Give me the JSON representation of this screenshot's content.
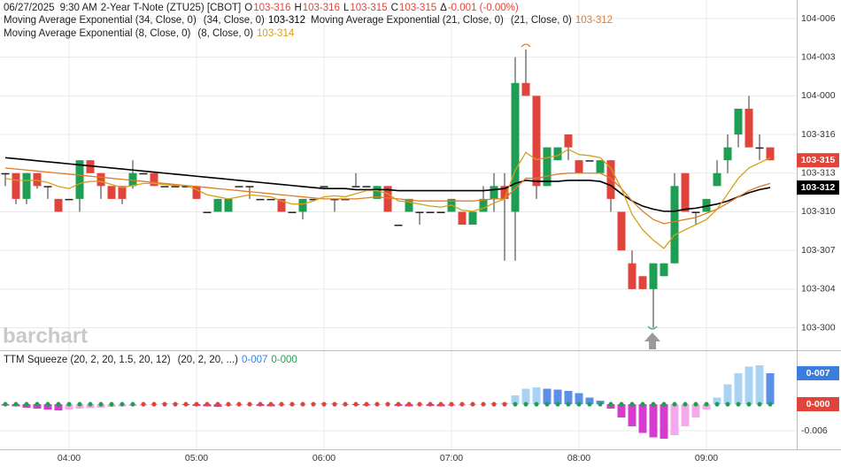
{
  "header": {
    "date": "06/27/2025",
    "time": "9:30 AM",
    "symbol": "2-Year T-Note (ZTU25) [CBOT]",
    "ohlc": [
      {
        "key": "O",
        "value": "103-316"
      },
      {
        "key": "H",
        "value": "103-316"
      },
      {
        "key": "L",
        "value": "103-315"
      },
      {
        "key": "C",
        "value": "103-315"
      },
      {
        "key": "Δ",
        "value": "-0.001 (-0.00%)"
      }
    ],
    "value_color": "#e0443a",
    "watermark": "barchart"
  },
  "chart_data": [
    {
      "type": "candlestick",
      "categories": [
        null,
        null,
        null,
        null,
        null,
        null,
        "04:00",
        null,
        null,
        null,
        null,
        null,
        null,
        null,
        null,
        null,
        null,
        null,
        "05:00",
        null,
        null,
        null,
        null,
        null,
        null,
        null,
        null,
        null,
        null,
        null,
        "06:00",
        null,
        null,
        null,
        null,
        null,
        null,
        null,
        null,
        null,
        null,
        null,
        "07:00",
        null,
        null,
        null,
        null,
        null,
        null,
        null,
        null,
        null,
        null,
        null,
        "08:00",
        null,
        null,
        null,
        null,
        null,
        null,
        null,
        null,
        null,
        null,
        null,
        "09:00",
        null,
        null,
        null,
        null,
        null,
        null
      ],
      "open": [
        31.25,
        31.25,
        31.0,
        31.25,
        31.125,
        31.0,
        31.0,
        31.0,
        31.375,
        31.25,
        31.125,
        31.125,
        31.125,
        31.25,
        31.25,
        31.125,
        31.125,
        31.125,
        31.125,
        30.875,
        30.875,
        30.875,
        31.125,
        31.125,
        31.0,
        31.0,
        31.0,
        30.875,
        30.875,
        31.0,
        31.125,
        31.0,
        31.0,
        31.125,
        31.125,
        31.0,
        31.125,
        30.75,
        30.875,
        30.875,
        30.875,
        30.875,
        30.875,
        30.875,
        30.75,
        30.875,
        31.0,
        31.125,
        30.875,
        32.125,
        32.0,
        31.125,
        31.375,
        31.625,
        31.375,
        31.375,
        31.25,
        31.375,
        30.875,
        30.375,
        30.25,
        30.125,
        30.25,
        30.375,
        31.25,
        30.875,
        30.875,
        31.125,
        31.375,
        31.625,
        31.875,
        31.5,
        31.5
      ],
      "high": [
        31.25,
        31.25,
        31.25,
        31.25,
        31.125,
        31.0,
        31.0,
        31.375,
        31.375,
        31.25,
        31.125,
        31.125,
        31.375,
        31.25,
        31.25,
        31.125,
        31.125,
        31.125,
        31.125,
        30.875,
        31.0,
        31.0,
        31.125,
        31.125,
        31.0,
        31.0,
        31.0,
        30.875,
        31.0,
        31.0,
        31.125,
        31.0,
        31.0,
        31.25,
        31.125,
        31.125,
        31.125,
        30.75,
        31.0,
        30.875,
        30.875,
        30.875,
        31.0,
        30.875,
        30.875,
        31.125,
        31.25,
        31.25,
        32.375,
        32.45,
        32.0,
        31.5,
        31.5,
        31.625,
        31.375,
        31.375,
        31.375,
        31.375,
        30.875,
        30.5,
        30.25,
        30.375,
        30.375,
        31.25,
        31.25,
        30.875,
        31.0,
        31.375,
        31.625,
        31.875,
        32.0,
        31.625,
        31.5
      ],
      "low": [
        31.125,
        30.95,
        30.95,
        31.1,
        31.0,
        30.875,
        31.0,
        30.875,
        31.25,
        31.0,
        31.0,
        30.95,
        31.1,
        31.25,
        31.125,
        31.125,
        31.125,
        31.125,
        31.0,
        30.875,
        30.875,
        30.875,
        31.125,
        31.0,
        31.0,
        31.0,
        30.875,
        30.875,
        30.8,
        31.0,
        31.125,
        30.875,
        31.0,
        31.125,
        31.125,
        31.0,
        30.875,
        30.75,
        30.875,
        30.75,
        30.875,
        30.875,
        30.875,
        30.75,
        30.75,
        30.875,
        30.875,
        30.4,
        30.4,
        32.0,
        31.0,
        31.125,
        31.375,
        31.375,
        31.25,
        31.375,
        31.25,
        30.875,
        30.5,
        30.125,
        30.125,
        29.75,
        30.25,
        30.375,
        30.875,
        30.75,
        30.875,
        31.125,
        31.25,
        31.5,
        31.5,
        31.375,
        31.375
      ],
      "close": [
        31.25,
        31.0,
        31.25,
        31.125,
        31.125,
        30.875,
        31.0,
        31.375,
        31.25,
        31.125,
        31.0,
        31.0,
        31.25,
        31.25,
        31.125,
        31.125,
        31.125,
        31.125,
        31.0,
        30.875,
        31.0,
        31.0,
        31.125,
        31.125,
        31.0,
        31.0,
        30.875,
        30.875,
        31.0,
        31.0,
        31.125,
        31.0,
        31.0,
        31.125,
        31.125,
        31.125,
        30.875,
        30.75,
        31.0,
        30.875,
        30.875,
        30.875,
        31.0,
        30.75,
        30.875,
        31.0,
        31.125,
        31.0,
        32.125,
        32.0,
        31.125,
        31.5,
        31.5,
        31.5,
        31.25,
        31.375,
        31.375,
        31.0,
        30.5,
        30.125,
        30.125,
        30.375,
        30.375,
        31.125,
        30.875,
        30.875,
        31.0,
        31.25,
        31.5,
        31.875,
        31.5,
        31.5,
        31.375
      ],
      "last_label": "103-315",
      "colors": {
        "up": "#1e9e52",
        "down": "#e0443a",
        "flat": "#222222"
      },
      "series": [
        {
          "name": "Moving Average Exponential (34, Close, 0)",
          "params": "(34, Close, 0)",
          "last_label": "103-312",
          "color": "#000000",
          "values": [
            31.4,
            31.39,
            31.38,
            31.37,
            31.36,
            31.35,
            31.34,
            31.33,
            31.32,
            31.31,
            31.3,
            31.29,
            31.28,
            31.27,
            31.26,
            31.25,
            31.24,
            31.23,
            31.22,
            31.21,
            31.2,
            31.19,
            31.18,
            31.17,
            31.16,
            31.15,
            31.14,
            31.13,
            31.12,
            31.11,
            31.1,
            31.1,
            31.1,
            31.09,
            31.09,
            31.09,
            31.09,
            31.08,
            31.08,
            31.08,
            31.08,
            31.08,
            31.08,
            31.08,
            31.08,
            31.08,
            31.09,
            31.1,
            31.15,
            31.18,
            31.17,
            31.17,
            31.17,
            31.18,
            31.18,
            31.18,
            31.17,
            31.13,
            31.05,
            30.98,
            30.93,
            30.9,
            30.88,
            30.88,
            30.9,
            30.91,
            30.93,
            30.95,
            30.98,
            31.02,
            31.06,
            31.09,
            31.11
          ]
        },
        {
          "name": "Moving Average Exponential (21, Close, 0)",
          "params": "(21, Close, 0)",
          "last_label": "103-312",
          "color": "#e07b28",
          "values": [
            31.3,
            31.29,
            31.28,
            31.27,
            31.26,
            31.25,
            31.24,
            31.23,
            31.22,
            31.21,
            31.2,
            31.19,
            31.18,
            31.17,
            31.16,
            31.15,
            31.14,
            31.13,
            31.12,
            31.11,
            31.1,
            31.09,
            31.08,
            31.07,
            31.06,
            31.05,
            31.04,
            31.03,
            31.02,
            31.01,
            31.0,
            31.0,
            31.0,
            31.0,
            31.01,
            31.02,
            31.01,
            31.0,
            30.99,
            30.98,
            30.98,
            30.98,
            30.98,
            30.98,
            30.98,
            30.99,
            31.0,
            31.0,
            31.1,
            31.2,
            31.2,
            31.22,
            31.24,
            31.25,
            31.25,
            31.25,
            31.25,
            31.2,
            31.1,
            30.98,
            30.88,
            30.8,
            30.76,
            30.78,
            30.8,
            30.82,
            30.86,
            30.9,
            30.96,
            31.02,
            31.08,
            31.12,
            31.15
          ]
        },
        {
          "name": "Moving Average Exponential (8, Close, 0)",
          "params": "(8, Close, 0)",
          "last_label": "103-314",
          "color": "#d4a017",
          "values": [
            31.2,
            31.18,
            31.18,
            31.18,
            31.16,
            31.12,
            31.1,
            31.15,
            31.17,
            31.17,
            31.14,
            31.11,
            31.13,
            31.15,
            31.15,
            31.14,
            31.13,
            31.13,
            31.09,
            31.04,
            31.02,
            31.0,
            31.02,
            31.04,
            31.03,
            31.02,
            30.98,
            30.95,
            30.95,
            30.98,
            31.02,
            31.03,
            31.02,
            31.05,
            31.08,
            31.08,
            31.05,
            30.98,
            30.97,
            30.95,
            30.93,
            30.92,
            30.94,
            30.89,
            30.88,
            30.91,
            30.96,
            31.0,
            31.28,
            31.45,
            31.38,
            31.4,
            31.42,
            31.48,
            31.43,
            31.42,
            31.4,
            31.3,
            31.1,
            30.85,
            30.7,
            30.6,
            30.52,
            30.65,
            30.7,
            30.75,
            30.8,
            30.9,
            31.05,
            31.2,
            31.3,
            31.35,
            31.4
          ]
        }
      ],
      "ylim": [
        29.54,
        32.93
      ],
      "yticks": [
        {
          "value": 29.75,
          "label": "103-300"
        },
        {
          "value": 30.125,
          "label": "103-304"
        },
        {
          "value": 30.5,
          "label": "103-307"
        },
        {
          "value": 30.875,
          "label": "103-310"
        },
        {
          "value": 31.25,
          "label": "103-313"
        },
        {
          "value": 31.625,
          "label": "103-316"
        },
        {
          "value": 32,
          "label": "104-000"
        },
        {
          "value": 32.375,
          "label": "104-003"
        },
        {
          "value": 32.75,
          "label": "104-006"
        }
      ],
      "grid": true
    },
    {
      "type": "histogram",
      "name": "TTM Squeeze (20, 2, 20, 1.5, 20, 12)",
      "params": "(20, 2, 20, ...)",
      "last_label": "0-007",
      "squeeze_label": "0-000",
      "values": [
        -0.0003,
        -0.0005,
        -0.0008,
        -0.001,
        -0.0012,
        -0.0014,
        -0.0012,
        -0.001,
        -0.0009,
        -0.0008,
        -0.0006,
        -0.0005,
        -0.0004,
        -0.0003,
        -0.0002,
        0.0002,
        0.0001,
        -0.0002,
        -0.0004,
        -0.0005,
        -0.0006,
        -0.0004,
        -0.0003,
        -0.0002,
        -0.0004,
        -0.0005,
        -0.0003,
        -0.0002,
        -0.0001,
        0.0001,
        0.0002,
        0.0001,
        -0.0001,
        -0.0002,
        -0.0003,
        -0.0002,
        0.0001,
        -0.0004,
        -0.0005,
        -0.0003,
        -0.0004,
        -0.0005,
        -0.0004,
        -0.0003,
        -0.0002,
        -0.0001,
        0.0002,
        0.0003,
        0.002,
        0.0035,
        0.0038,
        0.0035,
        0.0033,
        0.003,
        0.0025,
        0.0015,
        0.0008,
        -0.001,
        -0.003,
        -0.005,
        -0.0065,
        -0.0075,
        -0.0078,
        -0.007,
        -0.005,
        -0.003,
        -0.0012,
        0.0015,
        0.0045,
        0.007,
        0.0085,
        0.0088,
        0.007
      ],
      "squeeze_values": [
        0,
        0,
        0,
        0,
        0,
        0,
        0,
        0,
        0,
        0,
        0,
        0,
        0,
        0,
        0,
        0,
        0,
        0,
        0,
        0,
        0,
        0,
        0,
        0,
        0,
        0,
        0,
        0,
        0,
        0,
        0,
        0,
        0,
        0,
        0,
        0,
        0,
        0,
        0,
        0,
        0,
        0,
        0,
        0,
        0,
        0,
        0,
        0,
        0,
        0,
        0,
        0,
        0,
        0,
        0,
        0,
        0,
        0,
        0,
        0,
        0,
        0,
        0,
        0,
        0,
        0,
        0,
        0,
        0,
        0,
        0,
        0,
        0
      ],
      "squeeze_on": [
        false,
        false,
        false,
        false,
        false,
        false,
        false,
        false,
        false,
        false,
        false,
        false,
        false,
        true,
        true,
        true,
        true,
        true,
        true,
        true,
        true,
        true,
        true,
        true,
        true,
        true,
        true,
        true,
        true,
        true,
        true,
        true,
        true,
        true,
        true,
        true,
        true,
        true,
        true,
        true,
        true,
        true,
        true,
        true,
        true,
        true,
        true,
        true,
        false,
        false,
        false,
        false,
        false,
        false,
        false,
        false,
        false,
        false,
        false,
        false,
        false,
        false,
        false,
        false,
        false,
        false,
        false,
        false,
        false,
        false,
        false,
        false,
        false
      ],
      "colors": {
        "pos_up": "#a9d3f5",
        "pos_down": "#5b8fe8",
        "neg_down": "#d63cd0",
        "neg_up": "#f6a8ec",
        "dot_on": "#e0443a",
        "dot_off": "#23a04f",
        "label": "#3b7ddd",
        "squeeze_badge": "#e0443a"
      },
      "ylim": [
        -0.0102,
        0.012
      ],
      "yticks": [
        -0.006
      ]
    }
  ]
}
